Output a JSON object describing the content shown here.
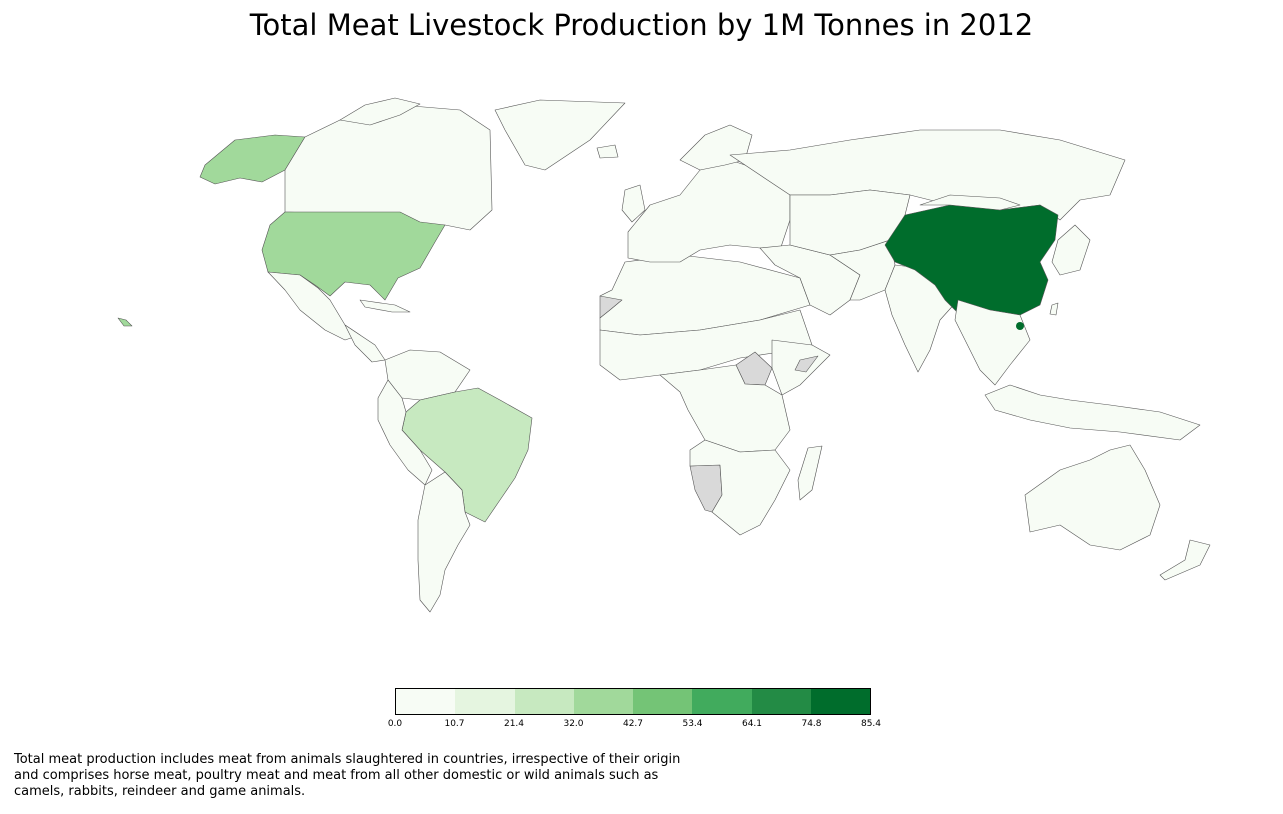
{
  "title": "Total Meat Livestock Production by 1M Tonnes in 2012",
  "footnote": "Total meat production includes meat from animals slaughtered in countries, irrespective of their origin and comprises horse meat, poultry meat and meat from all other domestic or wild animals such as camels, rabbits, reindeer and game animals.",
  "colors": {
    "no_data": "#d9d9d9",
    "border": "#555555",
    "bins": [
      "#f7fcf5",
      "#e5f5e0",
      "#c7e9c0",
      "#a1d99b",
      "#74c476",
      "#41ab5d",
      "#238b45",
      "#006d2c"
    ]
  },
  "legend": {
    "ticks": [
      "0.0",
      "10.7",
      "21.4",
      "32.0",
      "42.7",
      "53.4",
      "64.1",
      "74.8",
      "85.4"
    ]
  },
  "map_data": {
    "type": "choropleth",
    "variable": "Total meat production (million tonnes)",
    "year": 2012,
    "highlighted": [
      {
        "region": "China",
        "bin": 7
      },
      {
        "region": "United States",
        "bin": 3
      },
      {
        "region": "Brazil",
        "bin": 2
      }
    ],
    "no_data_regions": [
      "South Sudan",
      "Namibia",
      "Somalia",
      "Western Sahara"
    ],
    "default_bin": 0
  }
}
